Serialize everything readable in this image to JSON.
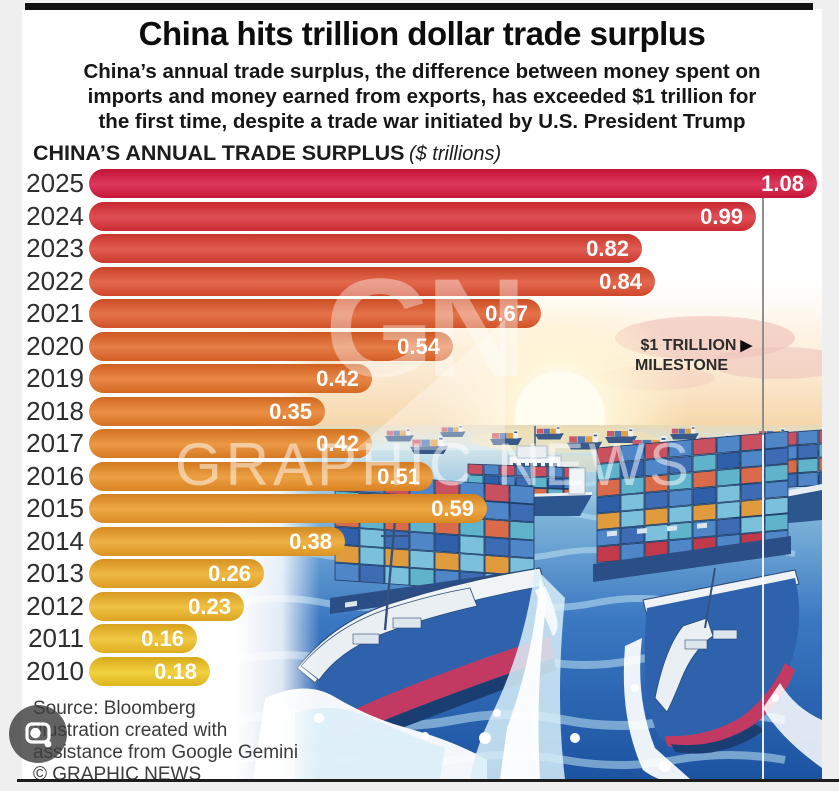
{
  "page": {
    "title": "China hits trillion dollar trade surplus",
    "subtitle_lines": [
      "China’s annual trade surplus, the difference between money spent on",
      "imports and money earned from exports, has exceeded $1 trillion for",
      "the first time, despite a trade war initiated by U.S. President Trump"
    ],
    "section_heading": "CHINA’S ANNUAL TRADE SURPLUS",
    "section_unit": "($ trillions)"
  },
  "chart_data": {
    "type": "bar",
    "orientation": "horizontal",
    "title": "CHINA’S ANNUAL TRADE SURPLUS",
    "unit": "$ trillions",
    "categories": [
      "2025",
      "2024",
      "2023",
      "2022",
      "2021",
      "2020",
      "2019",
      "2018",
      "2017",
      "2016",
      "2015",
      "2014",
      "2013",
      "2012",
      "2011",
      "2010"
    ],
    "values": [
      1.08,
      0.99,
      0.82,
      0.84,
      0.67,
      0.54,
      0.42,
      0.35,
      0.42,
      0.51,
      0.59,
      0.38,
      0.26,
      0.23,
      0.16,
      0.18
    ],
    "xlim": [
      0,
      1.08
    ],
    "grid": false,
    "value_labels_inside_bars": true,
    "value_label_color": "#ffffff",
    "bar_colors": [
      "#D7173F",
      "#DA3138",
      "#DC4134",
      "#DF4F30",
      "#E15C2C",
      "#E36829",
      "#E57327",
      "#E77D26",
      "#E88726",
      "#EA9126",
      "#EB9A26",
      "#ECA426",
      "#EDAD26",
      "#EEB725",
      "#EFC023",
      "#F0CA20"
    ],
    "milestone": {
      "value": 1.0,
      "label": "$1 TRILLION",
      "sublabel": "MILESTONE",
      "arrow": "▶"
    }
  },
  "watermark": {
    "logo": "GN",
    "text": "GRAPHIC NEWS"
  },
  "footer": {
    "source": "Source: Bloomberg",
    "credit_line1": "Illustration created with",
    "credit_line2": "assistance from Google Gemini",
    "copyright": "© GRAPHIC NEWS"
  }
}
